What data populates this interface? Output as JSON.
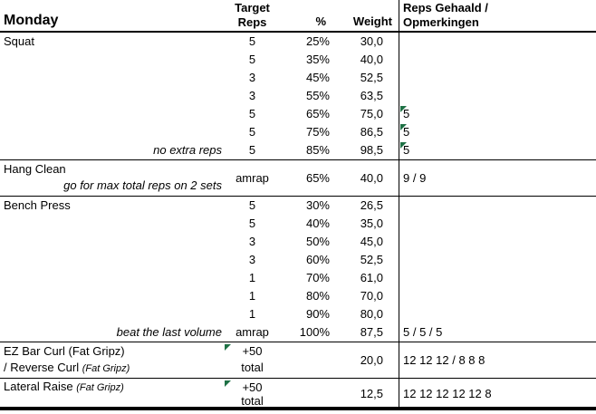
{
  "sheet": {
    "title": "Monday",
    "header": {
      "target_line1": "Target",
      "target_line2": "Reps",
      "percent": "%",
      "weight": "Weight",
      "reps_line1": "Reps Gehaald /",
      "reps_line2": "Opmerkingen"
    },
    "colors": {
      "flag_green": "#1e7145",
      "border": "#000000",
      "background": "#ffffff",
      "text": "#000000"
    },
    "sections": [
      {
        "id": "squat",
        "name": [
          {
            "text": "Squat",
            "italic": false
          }
        ],
        "rows": [
          {
            "note": "",
            "target": "5",
            "pct": "25%",
            "weight": "30,0",
            "reps": "",
            "flag": false
          },
          {
            "note": "",
            "target": "5",
            "pct": "35%",
            "weight": "40,0",
            "reps": "",
            "flag": false
          },
          {
            "note": "",
            "target": "3",
            "pct": "45%",
            "weight": "52,5",
            "reps": "",
            "flag": false
          },
          {
            "note": "",
            "target": "3",
            "pct": "55%",
            "weight": "63,5",
            "reps": "",
            "flag": false
          },
          {
            "note": "",
            "target": "5",
            "pct": "65%",
            "weight": "75,0",
            "reps": "5",
            "flag": true
          },
          {
            "note": "",
            "target": "5",
            "pct": "75%",
            "weight": "86,5",
            "reps": "5",
            "flag": true
          },
          {
            "note": "no extra reps",
            "target": "5",
            "pct": "85%",
            "weight": "98,5",
            "reps": "5",
            "flag": true
          }
        ]
      },
      {
        "id": "hang-clean",
        "line1": [
          {
            "text": "Hang Clean",
            "italic": false
          }
        ],
        "line2": [
          {
            "text": "go for max total reps on 2 sets",
            "italic": true
          }
        ],
        "line2_align": "right",
        "target_lines": [
          "amrap"
        ],
        "target_flag": false,
        "pct": "65%",
        "weight": "40,0",
        "reps": "9 / 9"
      },
      {
        "id": "bench-press",
        "name": [
          {
            "text": "Bench Press",
            "italic": false
          }
        ],
        "rows": [
          {
            "note": "",
            "target": "5",
            "pct": "30%",
            "weight": "26,5",
            "reps": "",
            "flag": false
          },
          {
            "note": "",
            "target": "5",
            "pct": "40%",
            "weight": "35,0",
            "reps": "",
            "flag": false
          },
          {
            "note": "",
            "target": "3",
            "pct": "50%",
            "weight": "45,0",
            "reps": "",
            "flag": false
          },
          {
            "note": "",
            "target": "3",
            "pct": "60%",
            "weight": "52,5",
            "reps": "",
            "flag": false
          },
          {
            "note": "",
            "target": "1",
            "pct": "70%",
            "weight": "61,0",
            "reps": "",
            "flag": false
          },
          {
            "note": "",
            "target": "1",
            "pct": "80%",
            "weight": "70,0",
            "reps": "",
            "flag": false
          },
          {
            "note": "",
            "target": "1",
            "pct": "90%",
            "weight": "80,0",
            "reps": "",
            "flag": false
          },
          {
            "note": "beat the last volume",
            "target": "amrap",
            "pct": "100%",
            "weight": "87,5",
            "reps": "5 / 5 / 5",
            "flag": false
          }
        ]
      },
      {
        "id": "ez-bar-curl",
        "line1": [
          {
            "text": "EZ Bar Curl (Fat Gripz)",
            "italic": false
          }
        ],
        "line2": [
          {
            "text": "/ Reverse Curl ",
            "italic": false
          },
          {
            "text": "(Fat Gripz)",
            "italic": true,
            "small": true
          }
        ],
        "line2_align": "left",
        "target_lines": [
          "+50",
          "total"
        ],
        "target_flag": true,
        "pct": "",
        "weight": "20,0",
        "reps": "12 12 12 / 8 8 8"
      },
      {
        "id": "lateral-raise",
        "line1": [
          {
            "text": "Lateral Raise ",
            "italic": false
          },
          {
            "text": "(Fat Gripz)",
            "italic": true,
            "small": true
          }
        ],
        "line2": [],
        "line2_align": "left",
        "target_lines": [
          "+50",
          "total"
        ],
        "target_flag": true,
        "pct": "",
        "weight": "12,5",
        "reps": "12 12 12 12 12 8"
      }
    ]
  }
}
